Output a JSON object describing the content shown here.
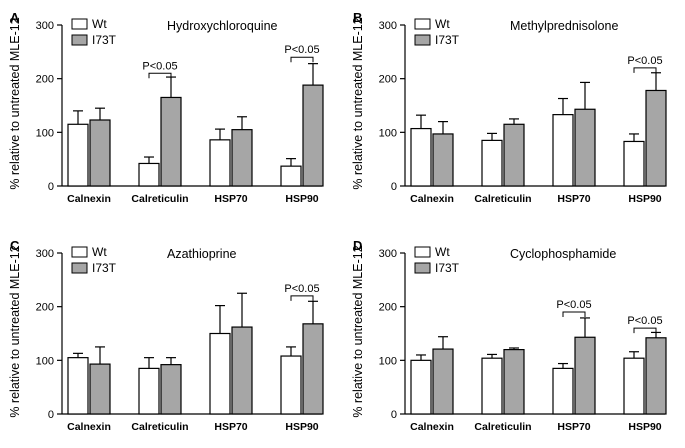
{
  "figure": {
    "ylabel": "% relative to untreated MLE-12",
    "legend": [
      "Wt",
      "I73T"
    ],
    "colors": {
      "wt": "#ffffff",
      "i73t": "#a6a6a6",
      "stroke": "#000000"
    }
  },
  "chart_data": [
    {
      "type": "bar",
      "letter": "A",
      "title": "Hydroxychloroquine",
      "categories": [
        "Calnexin",
        "Calreticulin",
        "HSP70",
        "HSP90"
      ],
      "ylim": [
        0,
        300
      ],
      "yticks": [
        0,
        100,
        200,
        300
      ],
      "ylabel": "% relative to untreated MLE-12",
      "series": [
        {
          "name": "Wt",
          "values": [
            115,
            42,
            86,
            37
          ],
          "errors": [
            25,
            12,
            20,
            14
          ]
        },
        {
          "name": "I73T",
          "values": [
            123,
            165,
            105,
            188
          ],
          "errors": [
            22,
            38,
            24,
            40
          ]
        }
      ],
      "annotations": [
        {
          "text": "P<0.05",
          "category": "Calreticulin",
          "y": 210
        },
        {
          "text": "P<0.05",
          "category": "HSP90",
          "y": 240
        }
      ]
    },
    {
      "type": "bar",
      "letter": "B",
      "title": "Methylprednisolone",
      "categories": [
        "Calnexin",
        "Calreticulin",
        "HSP70",
        "HSP90"
      ],
      "ylim": [
        0,
        300
      ],
      "yticks": [
        0,
        100,
        200,
        300
      ],
      "ylabel": "% relative to untreated MLE-12",
      "series": [
        {
          "name": "Wt",
          "values": [
            107,
            85,
            133,
            83
          ],
          "errors": [
            25,
            13,
            30,
            14
          ]
        },
        {
          "name": "I73T",
          "values": [
            97,
            115,
            143,
            178
          ],
          "errors": [
            23,
            10,
            50,
            33
          ]
        }
      ],
      "annotations": [
        {
          "text": "P<0.05",
          "category": "HSP90",
          "y": 220
        }
      ]
    },
    {
      "type": "bar",
      "letter": "C",
      "title": "Azathioprine",
      "categories": [
        "Calnexin",
        "Calreticulin",
        "HSP70",
        "HSP90"
      ],
      "ylim": [
        0,
        300
      ],
      "yticks": [
        0,
        100,
        200,
        300
      ],
      "ylabel": "% relative to untreated MLE-12",
      "series": [
        {
          "name": "Wt",
          "values": [
            105,
            85,
            150,
            108
          ],
          "errors": [
            8,
            20,
            52,
            17
          ]
        },
        {
          "name": "I73T",
          "values": [
            93,
            92,
            162,
            168
          ],
          "errors": [
            32,
            13,
            63,
            42
          ]
        }
      ],
      "annotations": [
        {
          "text": "P<0.05",
          "category": "HSP90",
          "y": 220
        }
      ]
    },
    {
      "type": "bar",
      "letter": "D",
      "title": "Cyclophosphamide",
      "categories": [
        "Calnexin",
        "Calreticulin",
        "HSP70",
        "HSP90"
      ],
      "ylim": [
        0,
        300
      ],
      "yticks": [
        0,
        100,
        200,
        300
      ],
      "ylabel": "% relative to untreated MLE-12",
      "series": [
        {
          "name": "Wt",
          "values": [
            100,
            104,
            85,
            104
          ],
          "errors": [
            10,
            7,
            9,
            12
          ]
        },
        {
          "name": "I73T",
          "values": [
            121,
            120,
            143,
            142
          ],
          "errors": [
            23,
            3,
            36,
            10
          ]
        }
      ],
      "annotations": [
        {
          "text": "P<0.05",
          "category": "HSP70",
          "y": 190
        },
        {
          "text": "P<0.05",
          "category": "HSP90",
          "y": 160
        }
      ]
    }
  ]
}
